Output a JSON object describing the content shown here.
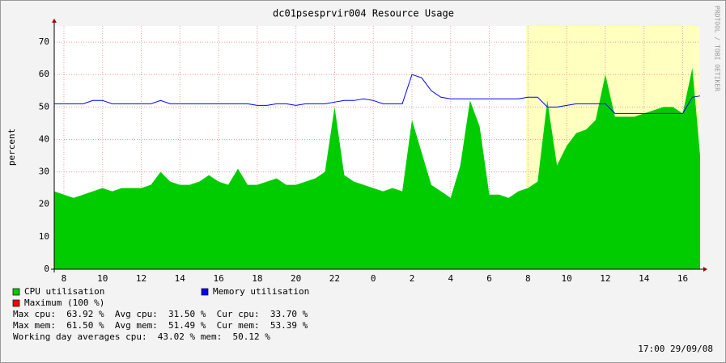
{
  "chart_data": {
    "type": "area-line",
    "title": "dc01psesprvir004 Resource Usage",
    "ylabel": "percent",
    "side_text": "PRDTOOL / TOBI OETIKER",
    "x": [
      7.5,
      8,
      8.5,
      9,
      9.5,
      10,
      10.5,
      11,
      11.5,
      12,
      12.5,
      13,
      13.5,
      14,
      14.5,
      15,
      15.5,
      16,
      16.5,
      17,
      17.5,
      18,
      18.5,
      19,
      19.5,
      20,
      20.5,
      21,
      21.5,
      22,
      22.5,
      23,
      23.5,
      24,
      24.5,
      25,
      25.5,
      26,
      26.5,
      27,
      27.5,
      28,
      28.5,
      29,
      29.5,
      30,
      30.5,
      31,
      31.5,
      32,
      32.5,
      33,
      33.5,
      34,
      34.5,
      35,
      35.5,
      36,
      36.5,
      37,
      37.5,
      38,
      38.5,
      39,
      39.5,
      40,
      40.5,
      40.9
    ],
    "series": [
      {
        "name": "CPU utilisation",
        "color": "#00cc00",
        "kind": "area",
        "values": [
          24,
          23,
          22,
          23,
          24,
          25,
          24,
          25,
          25,
          25,
          26,
          30,
          27,
          26,
          26,
          27,
          29,
          27,
          26,
          31,
          26,
          26,
          27,
          28,
          26,
          26,
          27,
          28,
          30,
          50,
          29,
          27,
          26,
          25,
          24,
          25,
          24,
          46,
          36,
          26,
          24,
          22,
          32,
          52,
          44,
          23,
          23,
          22,
          24,
          25,
          27,
          52,
          32,
          38,
          42,
          43,
          46,
          60,
          47,
          47,
          47,
          48,
          49,
          50,
          50,
          48,
          62,
          35
        ]
      },
      {
        "name": "Memory utilisation",
        "color": "#0000ff",
        "kind": "line",
        "values": [
          51,
          51,
          51,
          51,
          52,
          52,
          51,
          51,
          51,
          51,
          51,
          52,
          51,
          51,
          51,
          51,
          51,
          51,
          51,
          51,
          51,
          50.5,
          50.5,
          51,
          51,
          50.5,
          51,
          51,
          51,
          51.5,
          52,
          52,
          52.5,
          52,
          51,
          51,
          51,
          60,
          59,
          55,
          53,
          52.5,
          52.5,
          52.5,
          52.5,
          52.5,
          52.5,
          52.5,
          52.5,
          53,
          53,
          50,
          50,
          50.5,
          51,
          51,
          51,
          51,
          48,
          48,
          48,
          48,
          48,
          48,
          48,
          48,
          53,
          53.4
        ]
      }
    ],
    "extra_legend": [
      {
        "name": "Maximum (100 %)",
        "color": "#ff0000"
      }
    ],
    "shaded_x": [
      31.9,
      40.9
    ],
    "xlim": [
      7.5,
      40.9
    ],
    "xticks": [
      8,
      10,
      12,
      14,
      16,
      18,
      20,
      22,
      {
        "value": 24,
        "label": "0"
      },
      {
        "value": 26,
        "label": "2"
      },
      {
        "value": 28,
        "label": "4"
      },
      {
        "value": 30,
        "label": "6"
      },
      {
        "value": 32,
        "label": "8"
      },
      {
        "value": 34,
        "label": "10"
      },
      {
        "value": 36,
        "label": "12"
      },
      {
        "value": 38,
        "label": "14"
      },
      {
        "value": 40,
        "label": "16"
      }
    ],
    "ylim": [
      0,
      75
    ],
    "yticks": [
      0,
      10,
      20,
      30,
      40,
      50,
      60,
      70
    ],
    "grid": true,
    "footer_lines": [
      "Max cpu:  63.92 %  Avg cpu:  31.50 %  Cur cpu:  33.70 %",
      "Max mem:  61.50 %  Avg mem:  51.49 %  Cur mem:  53.39 %",
      "Working day averages cpu:  43.02 % mem:  50.12 %"
    ],
    "timestamp": "17:00 29/09/08"
  }
}
